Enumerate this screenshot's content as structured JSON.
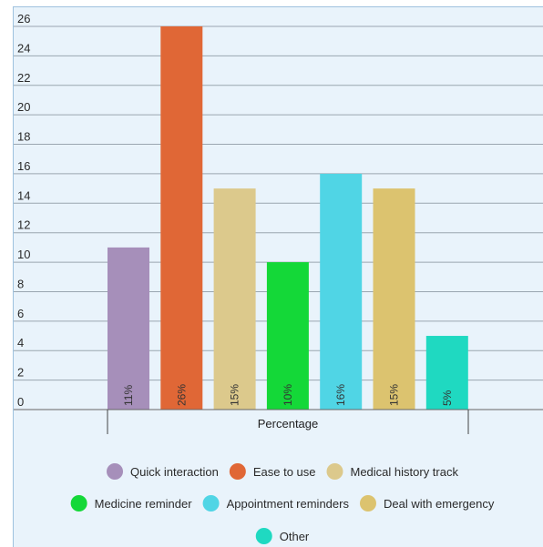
{
  "chart_data": {
    "type": "bar",
    "title": "",
    "xlabel": "Percentage",
    "ylabel": "",
    "ylim": [
      0,
      26
    ],
    "yticks": [
      0,
      2,
      4,
      6,
      8,
      10,
      12,
      14,
      16,
      18,
      20,
      22,
      24,
      26
    ],
    "grid": true,
    "legend_position": "bottom",
    "series": [
      {
        "name": "Quick interaction",
        "value": 11,
        "label": "11%",
        "color": "#a68fba"
      },
      {
        "name": "Ease to use",
        "value": 26,
        "label": "26%",
        "color": "#e06736"
      },
      {
        "name": "Medical history track",
        "value": 15,
        "label": "15%",
        "color": "#dcc98c"
      },
      {
        "name": "Medicine reminder",
        "value": 10,
        "label": "10%",
        "color": "#14d838"
      },
      {
        "name": "Appointment reminders",
        "value": 16,
        "label": "16%",
        "color": "#50d5e5"
      },
      {
        "name": "Deal with emergency",
        "value": 15,
        "label": "15%",
        "color": "#dcc36f"
      },
      {
        "name": "Other",
        "value": 5,
        "label": "5%",
        "color": "#1fd9c1"
      }
    ]
  }
}
